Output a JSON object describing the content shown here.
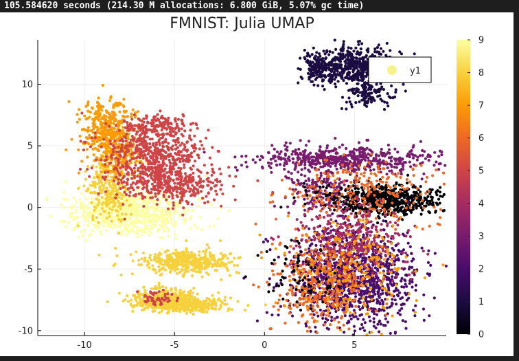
{
  "header": {
    "timing_text": "105.584620 seconds (214.30 M allocations: 6.800 GiB, 5.07% gc time)"
  },
  "chart_data": {
    "type": "scatter",
    "title": "FMNIST: Julia UMAP",
    "xlabel": "",
    "ylabel": "",
    "xlim": [
      -12.6,
      10.1
    ],
    "ylim": [
      -10.4,
      13.6
    ],
    "xticks": [
      -10,
      -5,
      0,
      5
    ],
    "xtick_labels": [
      "-10",
      "-5",
      "0",
      "5"
    ],
    "yticks": [
      -10,
      -5,
      0,
      5,
      10
    ],
    "ytick_labels": [
      "-10",
      "-5",
      "0",
      "5",
      "10"
    ],
    "grid": true,
    "legend": {
      "position": "top-right",
      "entries": [
        "y1"
      ],
      "marker_color": "#f6f38f"
    },
    "colorbar": {
      "range": [
        0,
        9
      ],
      "ticks": [
        0,
        1,
        2,
        3,
        4,
        5,
        6,
        7,
        8,
        9
      ],
      "tick_labels": [
        "0",
        "1",
        "2",
        "3",
        "4",
        "5",
        "6",
        "7",
        "8",
        "9"
      ],
      "colormap": "inferno",
      "stops": [
        "#000004",
        "#1b0c41",
        "#4a0c6b",
        "#781c6d",
        "#a52c60",
        "#cf4446",
        "#ed6925",
        "#fb9b06",
        "#f7d13d",
        "#fcffa4"
      ]
    },
    "clusters": [
      {
        "label": 1,
        "cx": 5.1,
        "cy": 11.5,
        "sx": 1.1,
        "sy": 0.75,
        "n": 500,
        "color": "#1b0c41"
      },
      {
        "label": 1,
        "cx": 3.0,
        "cy": 11.3,
        "sx": 0.5,
        "sy": 0.6,
        "n": 160,
        "color": "#1b0c41"
      },
      {
        "label": 1,
        "cx": 5.8,
        "cy": 9.2,
        "sx": 0.7,
        "sy": 0.5,
        "n": 120,
        "color": "#1b0c41"
      },
      {
        "label": 3,
        "cx": 4.5,
        "cy": 3.9,
        "sx": 2.5,
        "sy": 0.55,
        "n": 560,
        "color": "#781c6d"
      },
      {
        "label": 3,
        "cx": 3.3,
        "cy": 1.4,
        "sx": 1.0,
        "sy": 1.0,
        "n": 200,
        "color": "#781c6d"
      },
      {
        "label": 0,
        "cx": 6.8,
        "cy": 0.6,
        "sx": 1.7,
        "sy": 0.6,
        "n": 650,
        "color": "#000004"
      },
      {
        "label": 6,
        "cx": 5.5,
        "cy": 1.2,
        "sx": 2.2,
        "sy": 1.3,
        "n": 260,
        "color": "#ed6925"
      },
      {
        "label": 2,
        "cx": 5.0,
        "cy": -5.8,
        "sx": 1.8,
        "sy": 2.0,
        "n": 1100,
        "color": "#4a0c6b"
      },
      {
        "label": 4,
        "cx": 4.8,
        "cy": -2.8,
        "sx": 1.6,
        "sy": 1.5,
        "n": 420,
        "color": "#a52c60"
      },
      {
        "label": 6,
        "cx": 3.2,
        "cy": -6.3,
        "sx": 1.3,
        "sy": 1.8,
        "n": 360,
        "color": "#ed6925"
      },
      {
        "label": 7,
        "cx": 4.6,
        "cy": -5.0,
        "sx": 1.8,
        "sy": 2.0,
        "n": 230,
        "color": "#fb9b06"
      },
      {
        "label": 0,
        "cx": 2.0,
        "cy": -5.5,
        "sx": 1.0,
        "sy": 1.3,
        "n": 70,
        "color": "#000004"
      },
      {
        "label": 9,
        "cx": -7.4,
        "cy": -0.4,
        "sx": 1.6,
        "sy": 0.9,
        "n": 800,
        "color": "#fcffa4"
      },
      {
        "label": 8,
        "cx": -8.6,
        "cy": 1.8,
        "sx": 0.6,
        "sy": 1.4,
        "n": 300,
        "color": "#f7d13d"
      },
      {
        "label": 7,
        "cx": -8.7,
        "cy": 6.2,
        "sx": 0.7,
        "sy": 1.3,
        "n": 420,
        "color": "#fb9b06"
      },
      {
        "label": 7,
        "cx": -7.9,
        "cy": 4.3,
        "sx": 0.6,
        "sy": 0.9,
        "n": 150,
        "color": "#fb9b06"
      },
      {
        "label": 5,
        "cx": -6.2,
        "cy": 4.4,
        "sx": 1.4,
        "sy": 1.2,
        "n": 500,
        "color": "#cf4446"
      },
      {
        "label": 5,
        "cx": -5.3,
        "cy": 2.0,
        "sx": 1.6,
        "sy": 0.9,
        "n": 400,
        "color": "#cf4446"
      },
      {
        "label": 5,
        "cx": -6.0,
        "cy": 6.6,
        "sx": 1.0,
        "sy": 0.4,
        "n": 150,
        "color": "#cf4446"
      },
      {
        "label": 8,
        "cx": -4.3,
        "cy": -4.4,
        "sx": 1.3,
        "sy": 0.5,
        "n": 420,
        "color": "#f7d13d"
      },
      {
        "label": 8,
        "cx": -5.5,
        "cy": -7.5,
        "sx": 0.9,
        "sy": 0.4,
        "n": 420,
        "color": "#f7d13d"
      },
      {
        "label": 8,
        "cx": -4.0,
        "cy": -7.9,
        "sx": 1.0,
        "sy": 0.3,
        "n": 230,
        "color": "#f7d13d"
      },
      {
        "label": 5,
        "cx": -6.0,
        "cy": -7.4,
        "sx": 0.5,
        "sy": 0.3,
        "n": 50,
        "color": "#cf4446"
      }
    ]
  }
}
